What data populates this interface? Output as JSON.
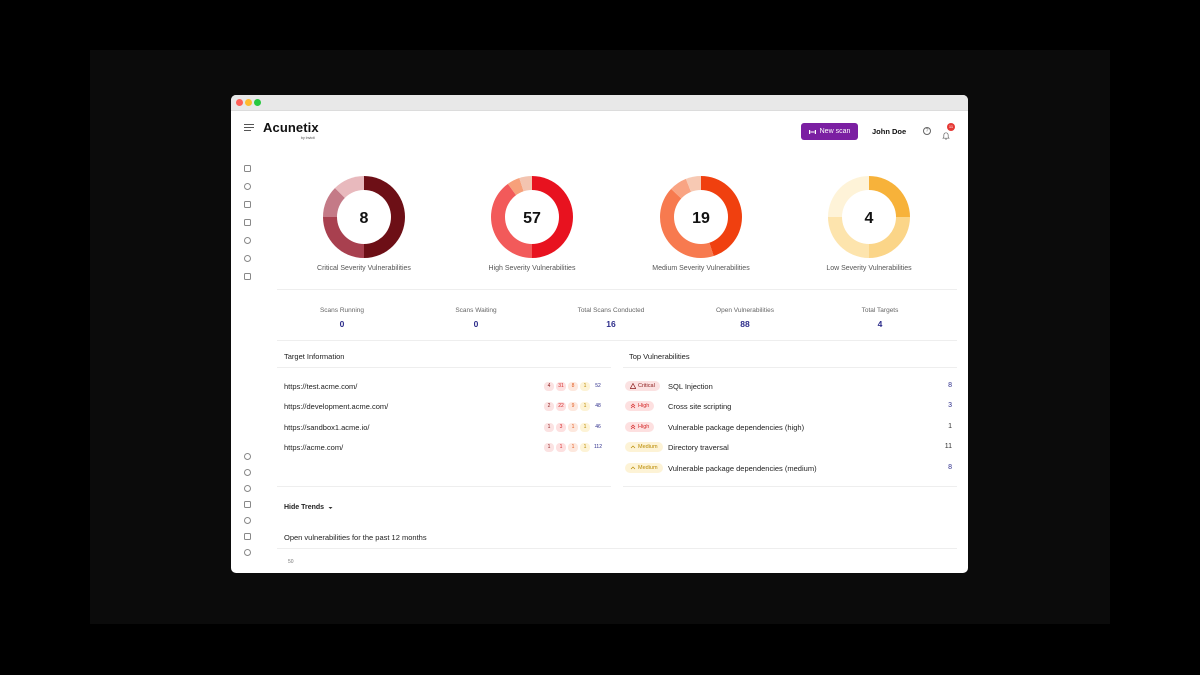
{
  "app": {
    "logo": "Acunetix",
    "logo_sub": "by Invicti"
  },
  "header": {
    "new_scan_label": "New scan",
    "user_name": "John Doe",
    "notification_count": "11",
    "help_label": "?"
  },
  "donuts": [
    {
      "value": "8",
      "label": "Critical Severity Vulnerabilities",
      "colors": [
        "#6d0f16",
        "#a8404f",
        "#c47a87",
        "#e8b9bd"
      ],
      "fractions": [
        0.5,
        0.25,
        0.125,
        0.125
      ]
    },
    {
      "value": "57",
      "label": "High Severity Vulnerabilities",
      "colors": [
        "#e8121f",
        "#f25a5a",
        "#f7a07a",
        "#f3c4b0"
      ],
      "fractions": [
        0.5,
        0.4,
        0.05,
        0.05
      ]
    },
    {
      "value": "19",
      "label": "Medium Severity Vulnerabilities",
      "colors": [
        "#f0400f",
        "#f77a4f",
        "#f9a483",
        "#f7c9b3"
      ],
      "fractions": [
        0.45,
        0.42,
        0.07,
        0.06
      ]
    },
    {
      "value": "4",
      "label": "Low Severity Vulnerabilities",
      "colors": [
        "#f7b23a",
        "#fbd588",
        "#fde4ad",
        "#fef3d8"
      ],
      "fractions": [
        0.25,
        0.25,
        0.25,
        0.25
      ]
    }
  ],
  "stats": [
    {
      "label": "Scans Running",
      "value": "0"
    },
    {
      "label": "Scans Waiting",
      "value": "0"
    },
    {
      "label": "Total Scans Conducted",
      "value": "16"
    },
    {
      "label": "Open Vulnerabilities",
      "value": "88"
    },
    {
      "label": "Total Targets",
      "value": "4"
    }
  ],
  "target_panel": {
    "title": "Target Information",
    "rows": [
      {
        "url": "https://test.acme.com/",
        "critical": "4",
        "high": "31",
        "medium": "8",
        "low": "1",
        "total": "52"
      },
      {
        "url": "https://development.acme.com/",
        "critical": "2",
        "high": "22",
        "medium": "9",
        "low": "1",
        "total": "48"
      },
      {
        "url": "https://sandbox1.acme.io/",
        "critical": "1",
        "high": "3",
        "medium": "1",
        "low": "1",
        "total": "46"
      },
      {
        "url": "https://acme.com/",
        "critical": "1",
        "high": "1",
        "medium": "1",
        "low": "1",
        "total": "112"
      }
    ]
  },
  "vuln_panel": {
    "title": "Top Vulnerabilities",
    "rows": [
      {
        "severity": "Critical",
        "name": "SQL Injection",
        "count": "8"
      },
      {
        "severity": "High",
        "name": "Cross site scripting",
        "count": "3"
      },
      {
        "severity": "High",
        "name": "Vulnerable package dependencies (high)",
        "count": "1"
      },
      {
        "severity": "Medium",
        "name": "Directory traversal",
        "count": "11"
      },
      {
        "severity": "Medium",
        "name": "Vulnerable package dependencies (medium)",
        "count": "8"
      }
    ]
  },
  "trends": {
    "toggle_label": "Hide Trends",
    "section_title": "Open vulnerabilities for the past 12 months",
    "axis_first_tick": "50"
  }
}
